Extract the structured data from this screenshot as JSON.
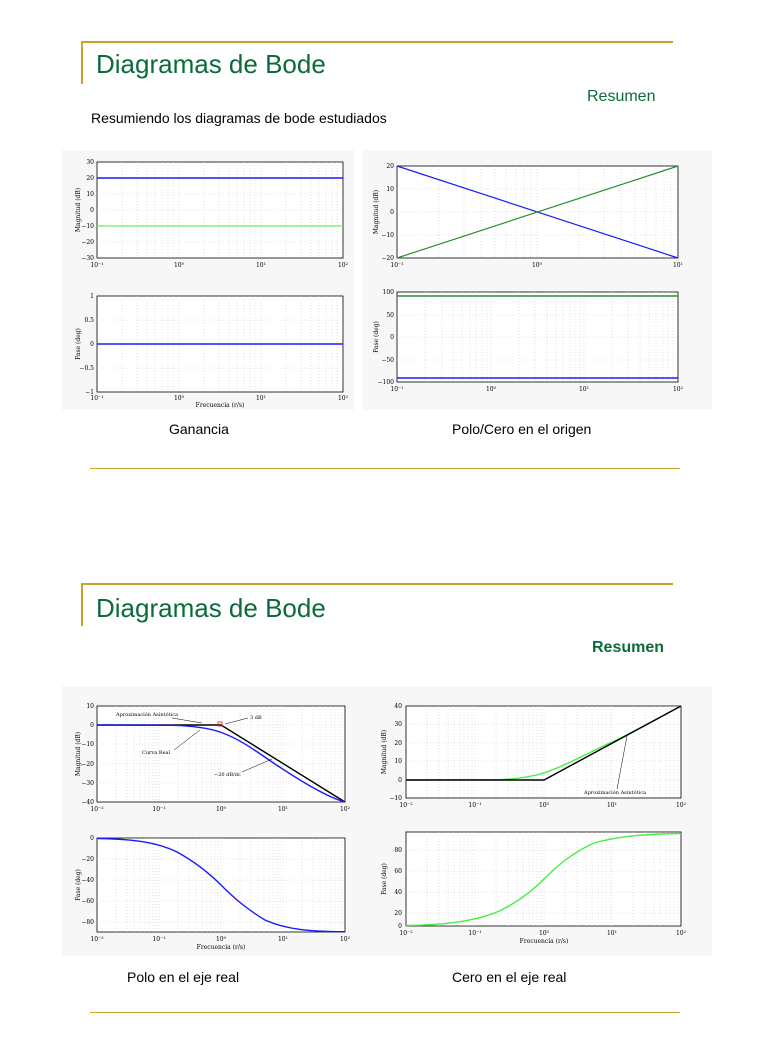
{
  "slide1": {
    "title": "Diagramas de Bode",
    "subtitle": "Resumen",
    "intro": "Resumiendo los diagramas de bode estudiados",
    "captions": {
      "left": "Ganancia",
      "right": "Polo/Cero en el origen"
    },
    "plots": {
      "gain_mag": {
        "ylabel": "Magnitud (dB)",
        "yticks": [
          "30",
          "20",
          "10",
          "0",
          "−10",
          "−20",
          "−30"
        ],
        "xticks": [
          "10⁻¹",
          "10⁰",
          "10¹",
          "10²"
        ],
        "xlabel": ""
      },
      "gain_phase": {
        "ylabel": "Fase (deg)",
        "yticks": [
          "1",
          "0.5",
          "0",
          "−0.5",
          "−1"
        ],
        "xticks": [
          "10⁻¹",
          "10⁰",
          "10¹",
          "10²"
        ],
        "xlabel": "Frecuencia (r/s)"
      },
      "origin_mag": {
        "ylabel": "Magnitud (dB)",
        "yticks": [
          "20",
          "10",
          "0",
          "−10",
          "−20"
        ],
        "xticks": [
          "10⁻¹",
          "10⁰",
          "10¹"
        ],
        "xlabel": ""
      },
      "origin_phase": {
        "ylabel": "Fase (deg)",
        "yticks": [
          "100",
          "50",
          "0",
          "−50",
          "−100"
        ],
        "xticks": [
          "10⁻¹",
          "10⁰",
          "10¹",
          "10²"
        ],
        "xlabel": ""
      }
    }
  },
  "slide2": {
    "title": "Diagramas de Bode",
    "subtitle": "Resumen",
    "captions": {
      "left": "Polo en el eje real",
      "right": "Cero en el eje real"
    },
    "plots": {
      "pole_mag": {
        "ylabel": "Magnitud (dB)",
        "yticks": [
          "10",
          "0",
          "−10",
          "−20",
          "−30",
          "−40"
        ],
        "xticks": [
          "10⁻²",
          "10⁻¹",
          "10⁰",
          "10¹",
          "10²"
        ],
        "annotations": {
          "asymptotic": "Aproximación Asintótica",
          "db3": "3  dB",
          "real": "Curva Real",
          "slope": "−20 dB/dc"
        }
      },
      "pole_phase": {
        "ylabel": "Fase (deg)",
        "yticks": [
          "0",
          "−20",
          "−40",
          "−60",
          "−80"
        ],
        "xticks": [
          "10⁻²",
          "10⁻¹",
          "10⁰",
          "10¹",
          "10²"
        ],
        "xlabel": "Frecuencia (r/s)"
      },
      "zero_mag": {
        "ylabel": "Magnitud (dB)",
        "yticks": [
          "40",
          "30",
          "20",
          "10",
          "0",
          "−10"
        ],
        "xticks": [
          "10⁻²",
          "10⁻¹",
          "10⁰",
          "10¹",
          "10²"
        ],
        "annotations": {
          "asymptotic": "Aproximación Asintótica"
        }
      },
      "zero_phase": {
        "ylabel": "Fase (deg)",
        "yticks": [
          "80",
          "60",
          "40",
          "20",
          "0"
        ],
        "xticks": [
          "10⁻²",
          "10⁻¹",
          "10⁰",
          "10¹",
          "10²"
        ],
        "xlabel": "Frecuencia (r/s)"
      }
    }
  },
  "colors": {
    "accent": "#c9a227",
    "title": "#0b6b3a",
    "blue": "#1a1aff",
    "green": "#2e8b2e",
    "lightgreen": "#44ee44"
  }
}
